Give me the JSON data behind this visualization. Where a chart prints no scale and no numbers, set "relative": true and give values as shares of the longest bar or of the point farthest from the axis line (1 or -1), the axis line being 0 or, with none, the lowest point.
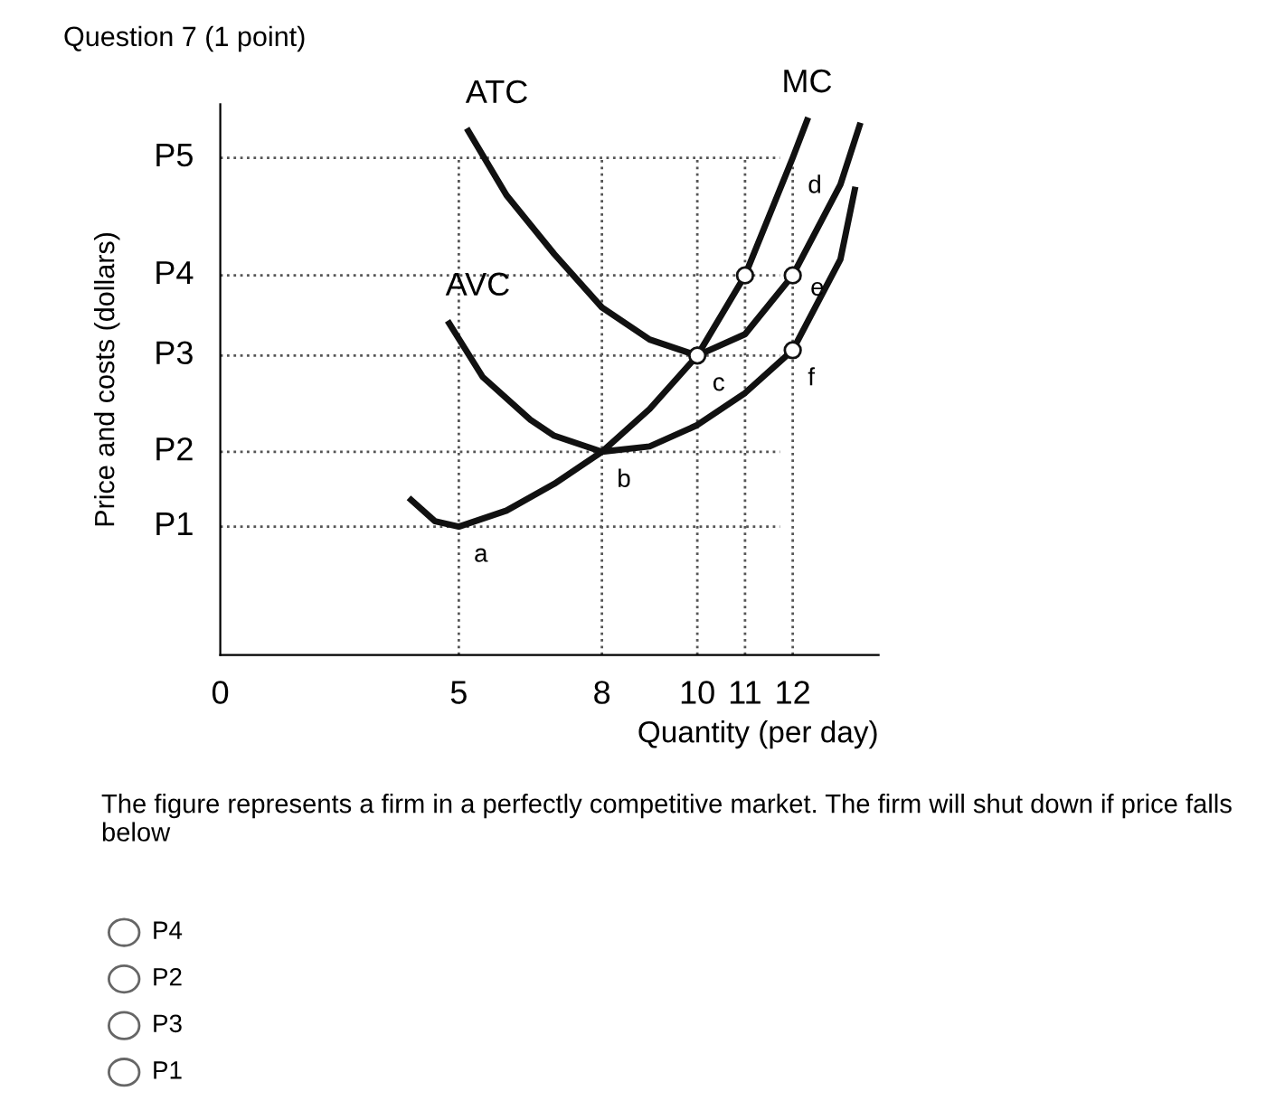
{
  "chart_data": {
    "type": "line",
    "title": "Question 7 (1 point)",
    "xlabel": "Quantity (per day)",
    "ylabel": "Price and costs (dollars)",
    "relative": true,
    "xlim": [
      0,
      13.8
    ],
    "xticks": [
      0,
      5,
      8,
      10,
      11,
      12
    ],
    "series": [
      {
        "name": "MC",
        "color": "#111111",
        "x": [
          4.0,
          4.5,
          5,
          6,
          7,
          8,
          9,
          10,
          11,
          12,
          12.3
        ],
        "values": [
          0.29,
          0.25,
          0.24,
          0.27,
          0.32,
          0.38,
          0.46,
          0.56,
          0.71,
          0.93,
          1.0
        ]
      },
      {
        "name": "ATC",
        "color": "#111111",
        "x": [
          5.2,
          6,
          7,
          8,
          9,
          10,
          11,
          12,
          13,
          13.4
        ],
        "values": [
          0.98,
          0.86,
          0.75,
          0.65,
          0.59,
          0.56,
          0.6,
          0.71,
          0.88,
          0.99
        ]
      },
      {
        "name": "AVC",
        "color": "#111111",
        "x": [
          4.8,
          5.5,
          6.5,
          7,
          8,
          9,
          10,
          11,
          12,
          13,
          13.3
        ],
        "values": [
          0.62,
          0.52,
          0.44,
          0.41,
          0.38,
          0.39,
          0.43,
          0.49,
          0.57,
          0.74,
          0.87
        ]
      },
      {
        "type": "scatter",
        "marker": "circle",
        "color": "#111111",
        "x": [
          10,
          11,
          12,
          12
        ],
        "values": [
          0.56,
          0.71,
          0.71,
          0.57
        ]
      }
    ],
    "ref_lines": [
      {
        "axis": "y",
        "value": 0.24,
        "label": "P1",
        "line_style": "dotted"
      },
      {
        "axis": "y",
        "value": 0.38,
        "label": "P2",
        "line_style": "dotted"
      },
      {
        "axis": "y",
        "value": 0.56,
        "label": "P3",
        "line_style": "dotted"
      },
      {
        "axis": "y",
        "value": 0.71,
        "label": "P4",
        "line_style": "dotted"
      },
      {
        "axis": "y",
        "value": 0.93,
        "label": "P5",
        "line_style": "dotted"
      },
      {
        "axis": "x",
        "value": 5,
        "line_style": "dotted"
      },
      {
        "axis": "x",
        "value": 8,
        "line_style": "dotted"
      },
      {
        "axis": "x",
        "value": 10,
        "line_style": "dotted"
      },
      {
        "axis": "x",
        "value": 11,
        "line_style": "dotted"
      },
      {
        "axis": "x",
        "value": 12,
        "line_style": "dotted"
      }
    ],
    "annotations": [
      {
        "text": "a",
        "x": 5,
        "y": 0.24
      },
      {
        "text": "b",
        "x": 8,
        "y": 0.38
      },
      {
        "text": "c",
        "x": 10,
        "y": 0.56
      },
      {
        "text": "d",
        "x": 12,
        "y": 0.93
      },
      {
        "text": "e",
        "x": 12,
        "y": 0.71
      },
      {
        "text": "f",
        "x": 12,
        "y": 0.57
      },
      "The figure represents a firm in a perfectly competitive market. The firm will shut down if price falls below",
      "P4",
      "P2",
      "P3",
      "P1"
    ],
    "legend": false,
    "grid": false,
    "marker": "none",
    "line_style": "solid"
  }
}
